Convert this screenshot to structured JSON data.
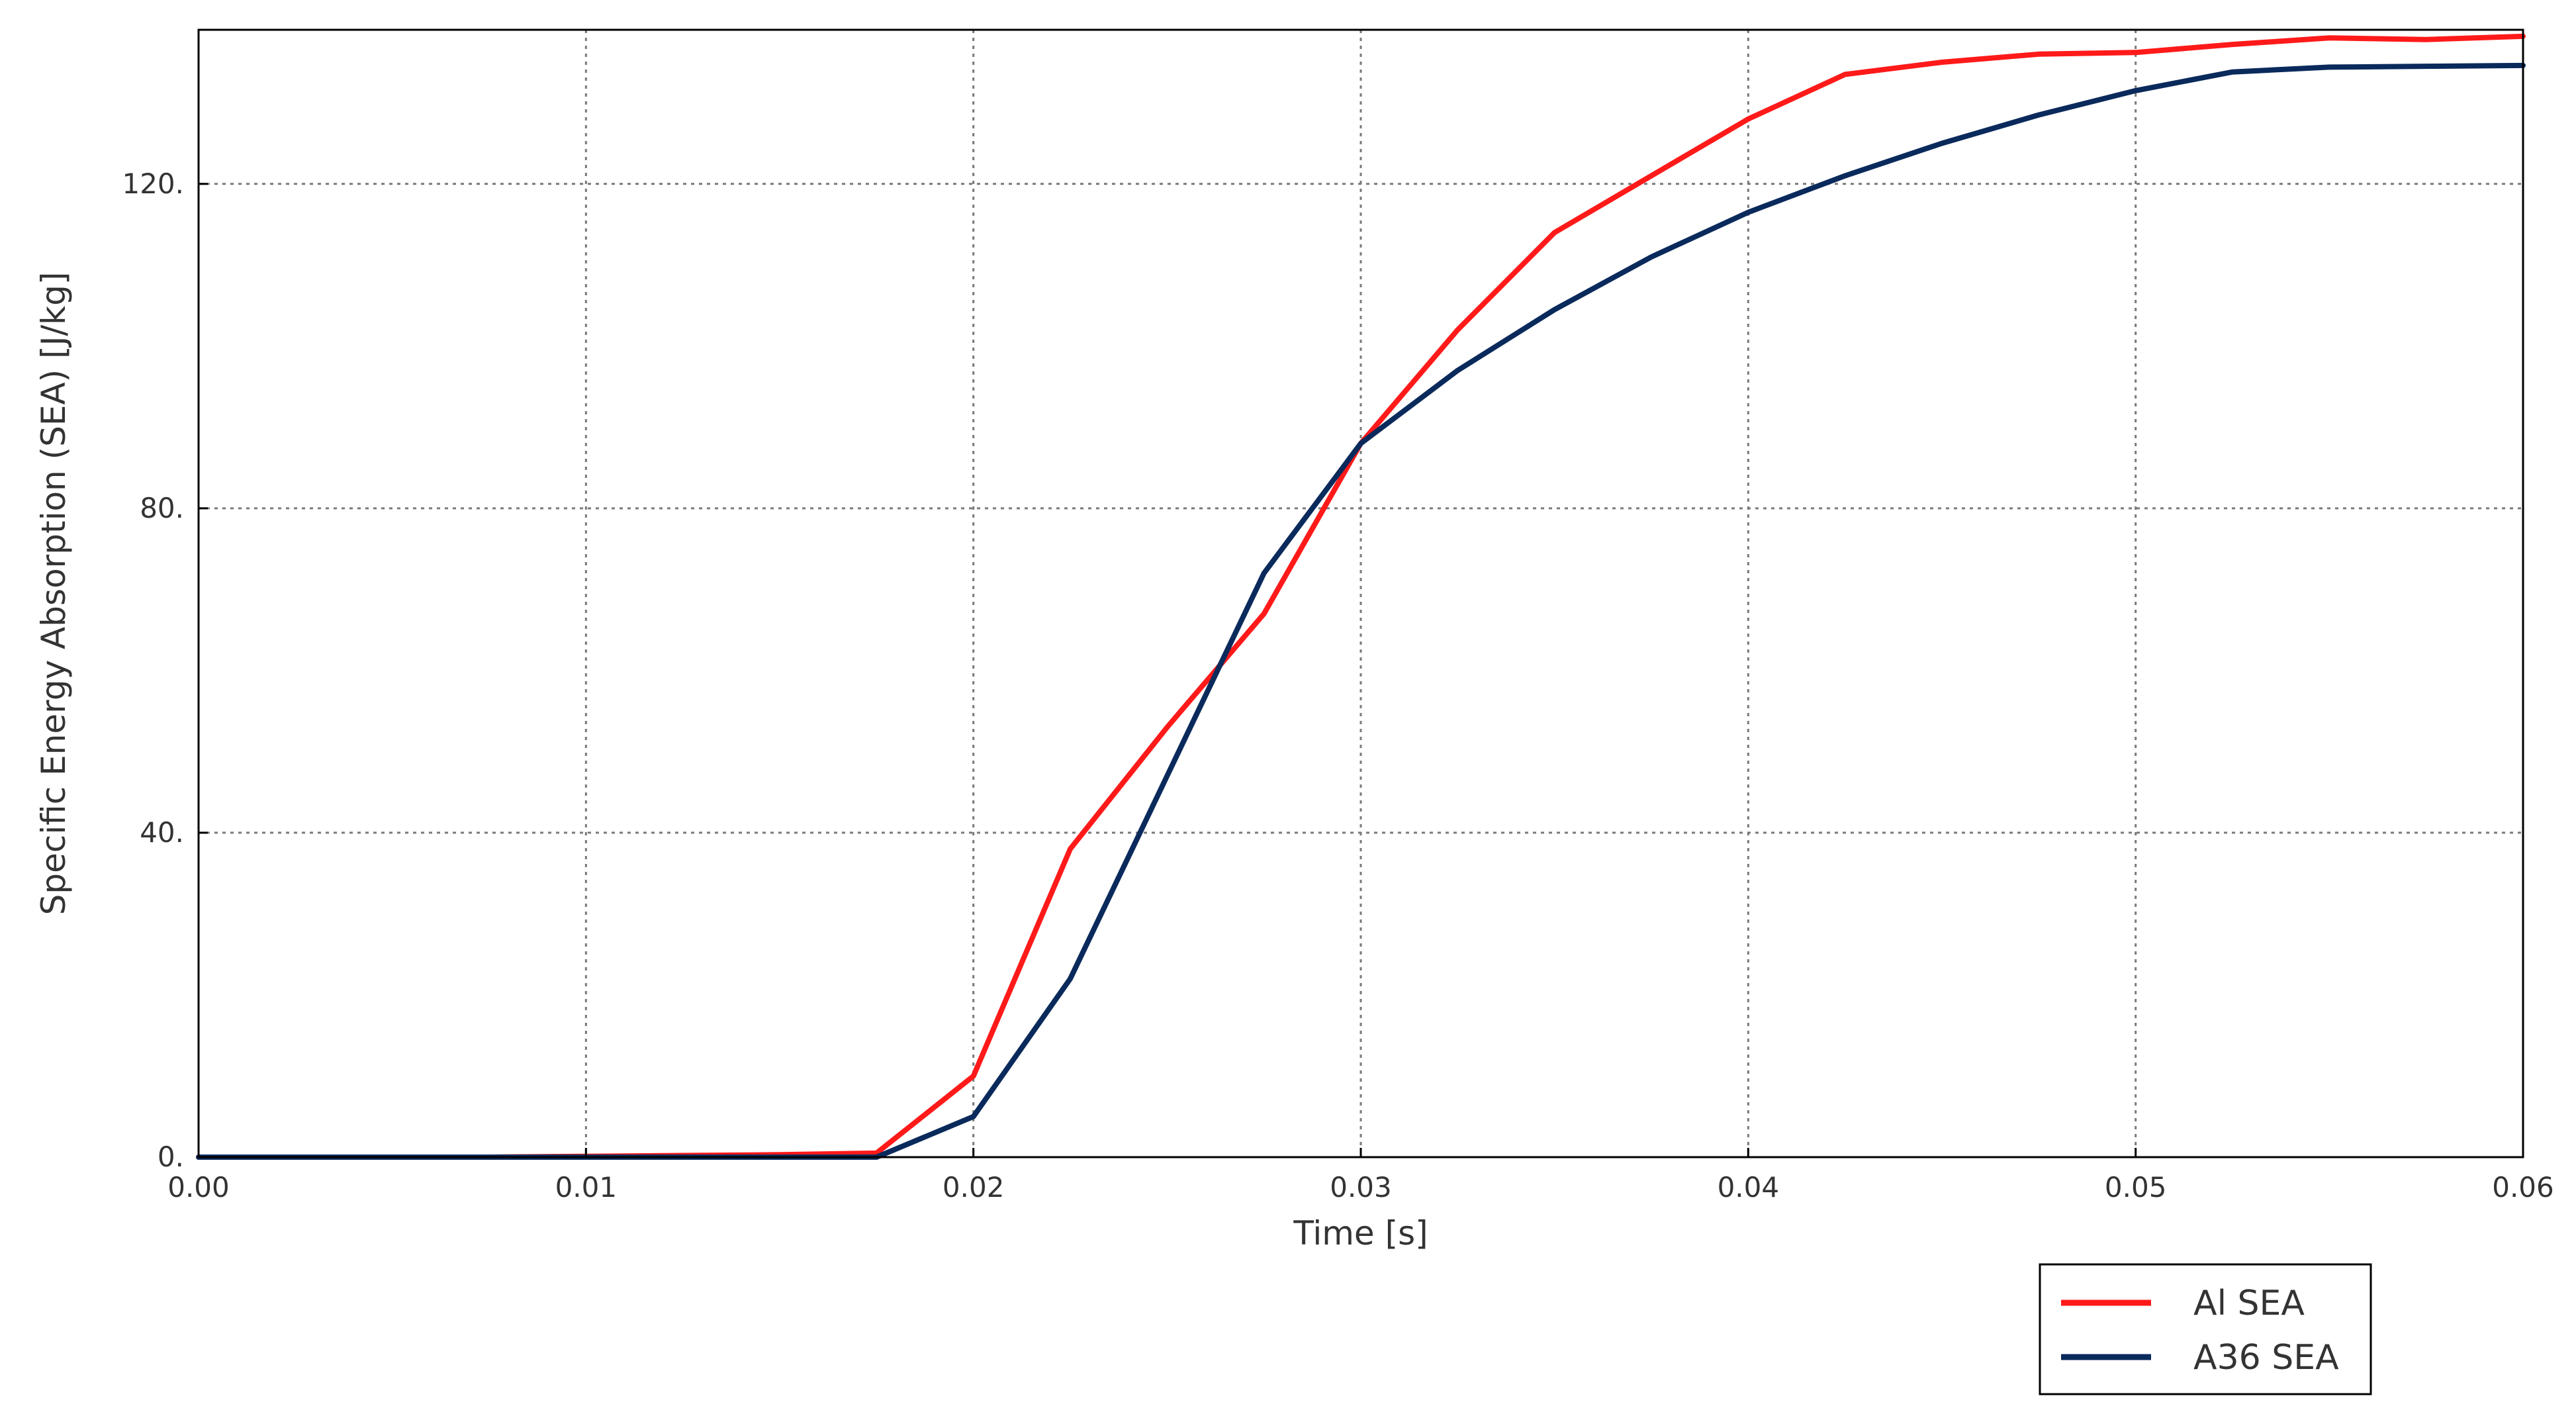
{
  "chart_data": {
    "type": "line",
    "title": "",
    "xlabel": "Time [s]",
    "ylabel": "Specific Energy Absorption (SEA) [J/kg]",
    "xlim": [
      0,
      0.06
    ],
    "ylim": [
      0,
      139
    ],
    "xticks": [
      0.0,
      0.01,
      0.02,
      0.03,
      0.04,
      0.05,
      0.06
    ],
    "xtick_labels": [
      "0.00",
      "0.01",
      "0.02",
      "0.03",
      "0.04",
      "0.05",
      "0.06"
    ],
    "yticks": [
      0,
      40,
      80,
      120
    ],
    "ytick_labels": [
      "0.",
      "40.",
      "80.",
      "120."
    ],
    "grid": true,
    "legend_position": "below-right",
    "series": [
      {
        "name": "Al SEA",
        "color": "#ff1a1a",
        "x": [
          0,
          0.0025,
          0.005,
          0.0075,
          0.01,
          0.0125,
          0.015,
          0.0175,
          0.02,
          0.0225,
          0.025,
          0.0275,
          0.03,
          0.0325,
          0.035,
          0.0375,
          0.04,
          0.0425,
          0.045,
          0.0475,
          0.05,
          0.0525,
          0.055,
          0.0575,
          0.06
        ],
        "values": [
          0,
          0,
          0,
          0,
          0.1,
          0.2,
          0.3,
          0.5,
          10,
          38,
          53,
          67,
          88,
          102,
          114,
          121,
          128,
          133.5,
          135,
          136,
          136.2,
          137.2,
          138,
          137.8,
          138.2
        ]
      },
      {
        "name": "A36 SEA",
        "color": "#0a2a5c",
        "x": [
          0,
          0.0025,
          0.005,
          0.0075,
          0.01,
          0.0125,
          0.015,
          0.0175,
          0.02,
          0.0225,
          0.025,
          0.0275,
          0.03,
          0.0325,
          0.035,
          0.0375,
          0.04,
          0.0425,
          0.045,
          0.0475,
          0.05,
          0.0525,
          0.055,
          0.0575,
          0.06
        ],
        "values": [
          0,
          0,
          0,
          0,
          0,
          0,
          0,
          0,
          5,
          22,
          47,
          72,
          88,
          97,
          104.5,
          111,
          116.5,
          121,
          125,
          128.5,
          131.5,
          133.8,
          134.4,
          134.5,
          134.6
        ]
      }
    ]
  }
}
